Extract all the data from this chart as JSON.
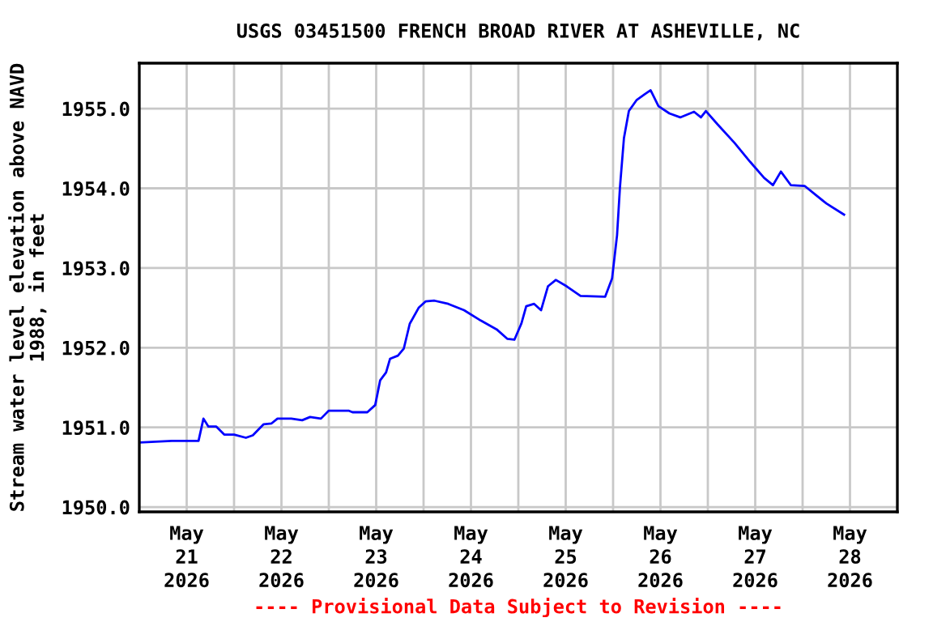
{
  "chart_data": {
    "type": "line",
    "title": "USGS 03451500 FRENCH BROAD RIVER AT ASHEVILLE, NC",
    "ylabel": "Stream water level elevation above NAVD\n1988, in feet",
    "annotations": [
      "---- Provisional Data Subject to Revision ----"
    ],
    "x": [
      "2026-05-21T00:00",
      "2026-05-21T08:15",
      "2026-05-21T15:00",
      "2026-05-21T16:15",
      "2026-05-21T17:30",
      "2026-05-21T19:30",
      "2026-05-21T21:30",
      "2026-05-22T00:00",
      "2026-05-22T03:00",
      "2026-05-22T04:45",
      "2026-05-22T07:30",
      "2026-05-22T09:30",
      "2026-05-22T11:00",
      "2026-05-22T14:30",
      "2026-05-22T17:15",
      "2026-05-22T19:15",
      "2026-05-22T22:00",
      "2026-05-23T00:00",
      "2026-05-23T05:00",
      "2026-05-23T06:00",
      "2026-05-23T09:45",
      "2026-05-23T11:45",
      "2026-05-23T13:00",
      "2026-05-23T14:30",
      "2026-05-23T15:30",
      "2026-05-23T17:30",
      "2026-05-23T19:00",
      "2026-05-23T20:30",
      "2026-05-23T22:45",
      "2026-05-24T00:30",
      "2026-05-24T02:45",
      "2026-05-24T06:15",
      "2026-05-24T10:15",
      "2026-05-24T14:30",
      "2026-05-24T18:30",
      "2026-05-24T21:15",
      "2026-05-24T23:00",
      "2026-05-25T00:45",
      "2026-05-25T02:00",
      "2026-05-25T04:00",
      "2026-05-25T05:45",
      "2026-05-25T07:30",
      "2026-05-25T09:30",
      "2026-05-25T12:15",
      "2026-05-25T15:45",
      "2026-05-25T22:00",
      "2026-05-25T23:45",
      "2026-05-26T01:00",
      "2026-05-26T01:45",
      "2026-05-26T02:45",
      "2026-05-26T04:00",
      "2026-05-26T06:00",
      "2026-05-26T08:00",
      "2026-05-26T09:30",
      "2026-05-26T11:30",
      "2026-05-26T14:15",
      "2026-05-26T17:00",
      "2026-05-26T20:30",
      "2026-05-26T22:15",
      "2026-05-26T23:30",
      "2026-05-27T02:30",
      "2026-05-27T06:45",
      "2026-05-27T10:45",
      "2026-05-27T14:15",
      "2026-05-27T16:30",
      "2026-05-27T18:30",
      "2026-05-27T21:00",
      "2026-05-28T00:30",
      "2026-05-28T03:15",
      "2026-05-28T06:00",
      "2026-05-28T10:30"
    ],
    "series": [
      {
        "color": "#0000ff",
        "values": [
          1950.81,
          1950.83,
          1950.83,
          1951.11,
          1951.01,
          1951.01,
          1950.91,
          1950.91,
          1950.87,
          1950.9,
          1951.04,
          1951.05,
          1951.11,
          1951.11,
          1951.09,
          1951.13,
          1951.11,
          1951.21,
          1951.21,
          1951.19,
          1951.19,
          1951.28,
          1951.59,
          1951.69,
          1951.86,
          1951.9,
          1951.99,
          1952.3,
          1952.5,
          1952.58,
          1952.59,
          1952.55,
          1952.47,
          1952.34,
          1952.23,
          1952.11,
          1952.1,
          1952.3,
          1952.52,
          1952.55,
          1952.47,
          1952.77,
          1952.85,
          1952.77,
          1952.65,
          1952.64,
          1952.87,
          1953.41,
          1954.02,
          1954.63,
          1954.97,
          1955.11,
          1955.18,
          1955.23,
          1955.03,
          1954.94,
          1954.89,
          1954.96,
          1954.89,
          1954.97,
          1954.8,
          1954.57,
          1954.33,
          1954.13,
          1954.04,
          1954.21,
          1954.04,
          1954.03,
          1953.92,
          1953.81,
          1953.67
        ]
      }
    ],
    "xlim": [
      "2026-05-21T00:00",
      "2026-05-29T00:00"
    ],
    "xticks": [
      {
        "value": "2026-05-21T12:00",
        "label": "May\n21\n2026"
      },
      {
        "value": "2026-05-22T12:00",
        "label": "May\n22\n2026"
      },
      {
        "value": "2026-05-23T12:00",
        "label": "May\n23\n2026"
      },
      {
        "value": "2026-05-24T12:00",
        "label": "May\n24\n2026"
      },
      {
        "value": "2026-05-25T12:00",
        "label": "May\n25\n2026"
      },
      {
        "value": "2026-05-26T12:00",
        "label": "May\n26\n2026"
      },
      {
        "value": "2026-05-27T12:00",
        "label": "May\n27\n2026"
      },
      {
        "value": "2026-05-28T12:00",
        "label": "May\n28\n2026"
      },
      {
        "value": "2026-05-22T00:00",
        "label": null
      },
      {
        "value": "2026-05-23T00:00",
        "label": null
      },
      {
        "value": "2026-05-24T00:00",
        "label": null
      },
      {
        "value": "2026-05-25T00:00",
        "label": null
      },
      {
        "value": "2026-05-26T00:00",
        "label": null
      },
      {
        "value": "2026-05-27T00:00",
        "label": null
      },
      {
        "value": "2026-05-28T00:00",
        "label": null
      }
    ],
    "ylim": [
      1949.94,
      1955.57
    ],
    "yticks": [
      {
        "value": 1950,
        "label": "1950.0"
      },
      {
        "value": 1951,
        "label": "1951.0"
      },
      {
        "value": 1952,
        "label": "1952.0"
      },
      {
        "value": 1953,
        "label": "1953.0"
      },
      {
        "value": 1954,
        "label": "1954.0"
      },
      {
        "value": 1955,
        "label": "1955.0"
      }
    ],
    "grid": true,
    "legend": false,
    "marker": "none",
    "line_style": "solid"
  }
}
